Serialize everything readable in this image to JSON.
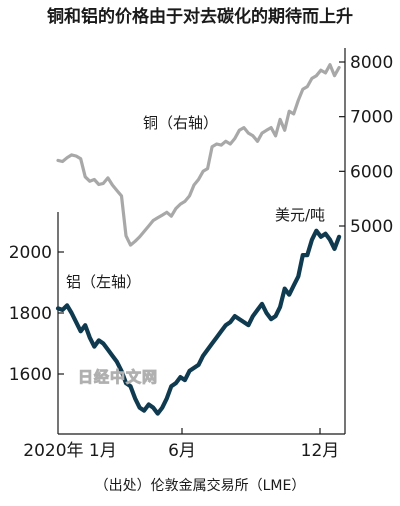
{
  "chart_data": {
    "type": "line",
    "title": "铜和铝的价格由于对去碳化的期待而上升",
    "source": "（出处）伦敦金属交易所（LME）",
    "unit_label": "美元/吨",
    "watermark": "日经中文网",
    "x_ticks": [
      "2020年 1月",
      "6月",
      "12月"
    ],
    "x_range": [
      0,
      12
    ],
    "legend": "none",
    "grid": false,
    "left_axis": {
      "ticks": [
        "1600",
        "1800",
        "2000"
      ],
      "ylim": [
        1400,
        2150
      ]
    },
    "right_axis": {
      "ticks": [
        "5000",
        "6000",
        "7000",
        "8000"
      ],
      "ylim": [
        4400,
        8200
      ]
    },
    "series": [
      {
        "name": "铜（右轴）",
        "axis": "right",
        "color": "#a8a8a8",
        "x": [
          0,
          0.2,
          0.4,
          0.6,
          0.8,
          1.0,
          1.2,
          1.4,
          1.6,
          1.8,
          2.0,
          2.2,
          2.4,
          2.6,
          2.8,
          3.0,
          3.2,
          3.4,
          3.6,
          3.8,
          4.0,
          4.2,
          4.4,
          4.6,
          4.8,
          5.0,
          5.2,
          5.4,
          5.6,
          5.8,
          6.0,
          6.2,
          6.4,
          6.6,
          6.8,
          7.0,
          7.2,
          7.4,
          7.6,
          7.8,
          8.0,
          8.2,
          8.4,
          8.6,
          8.8,
          9.0,
          9.2,
          9.4,
          9.6,
          9.8,
          10.0,
          10.2,
          10.4,
          10.6,
          10.8,
          11.0,
          11.2,
          11.4,
          11.6,
          11.8,
          12.0,
          12.2,
          12.4
        ],
        "values": [
          6200,
          6180,
          6250,
          6300,
          6280,
          6230,
          5900,
          5820,
          5850,
          5760,
          5780,
          5880,
          5750,
          5650,
          5550,
          4820,
          4650,
          4720,
          4800,
          4900,
          5000,
          5100,
          5150,
          5200,
          5250,
          5180,
          5320,
          5400,
          5450,
          5550,
          5750,
          5850,
          6000,
          6050,
          6450,
          6500,
          6480,
          6550,
          6500,
          6600,
          6750,
          6800,
          6700,
          6650,
          6550,
          6700,
          6750,
          6800,
          6650,
          6950,
          6750,
          7100,
          7050,
          7300,
          7500,
          7550,
          7700,
          7750,
          7850,
          7800,
          7950,
          7750,
          7900
        ]
      },
      {
        "name": "铝（左轴）",
        "axis": "left",
        "color": "#0f3a4f",
        "x": [
          0,
          0.2,
          0.4,
          0.6,
          0.8,
          1.0,
          1.2,
          1.4,
          1.6,
          1.8,
          2.0,
          2.2,
          2.4,
          2.6,
          2.8,
          3.0,
          3.2,
          3.4,
          3.6,
          3.8,
          4.0,
          4.2,
          4.4,
          4.6,
          4.8,
          5.0,
          5.2,
          5.4,
          5.6,
          5.8,
          6.0,
          6.2,
          6.4,
          6.6,
          6.8,
          7.0,
          7.2,
          7.4,
          7.6,
          7.8,
          8.0,
          8.2,
          8.4,
          8.6,
          8.8,
          9.0,
          9.2,
          9.4,
          9.6,
          9.8,
          10.0,
          10.2,
          10.4,
          10.6,
          10.8,
          11.0,
          11.2,
          11.4,
          11.6,
          11.8,
          12.0,
          12.2,
          12.4
        ],
        "values": [
          1815,
          1810,
          1825,
          1800,
          1770,
          1740,
          1760,
          1720,
          1690,
          1710,
          1700,
          1680,
          1660,
          1640,
          1610,
          1570,
          1560,
          1520,
          1490,
          1480,
          1500,
          1490,
          1470,
          1490,
          1520,
          1560,
          1570,
          1590,
          1580,
          1610,
          1620,
          1630,
          1660,
          1680,
          1700,
          1720,
          1740,
          1760,
          1770,
          1790,
          1780,
          1770,
          1760,
          1790,
          1810,
          1830,
          1800,
          1780,
          1790,
          1820,
          1880,
          1860,
          1890,
          1920,
          1990,
          1990,
          2040,
          2070,
          2050,
          2060,
          2040,
          2010,
          2050
        ]
      }
    ]
  }
}
